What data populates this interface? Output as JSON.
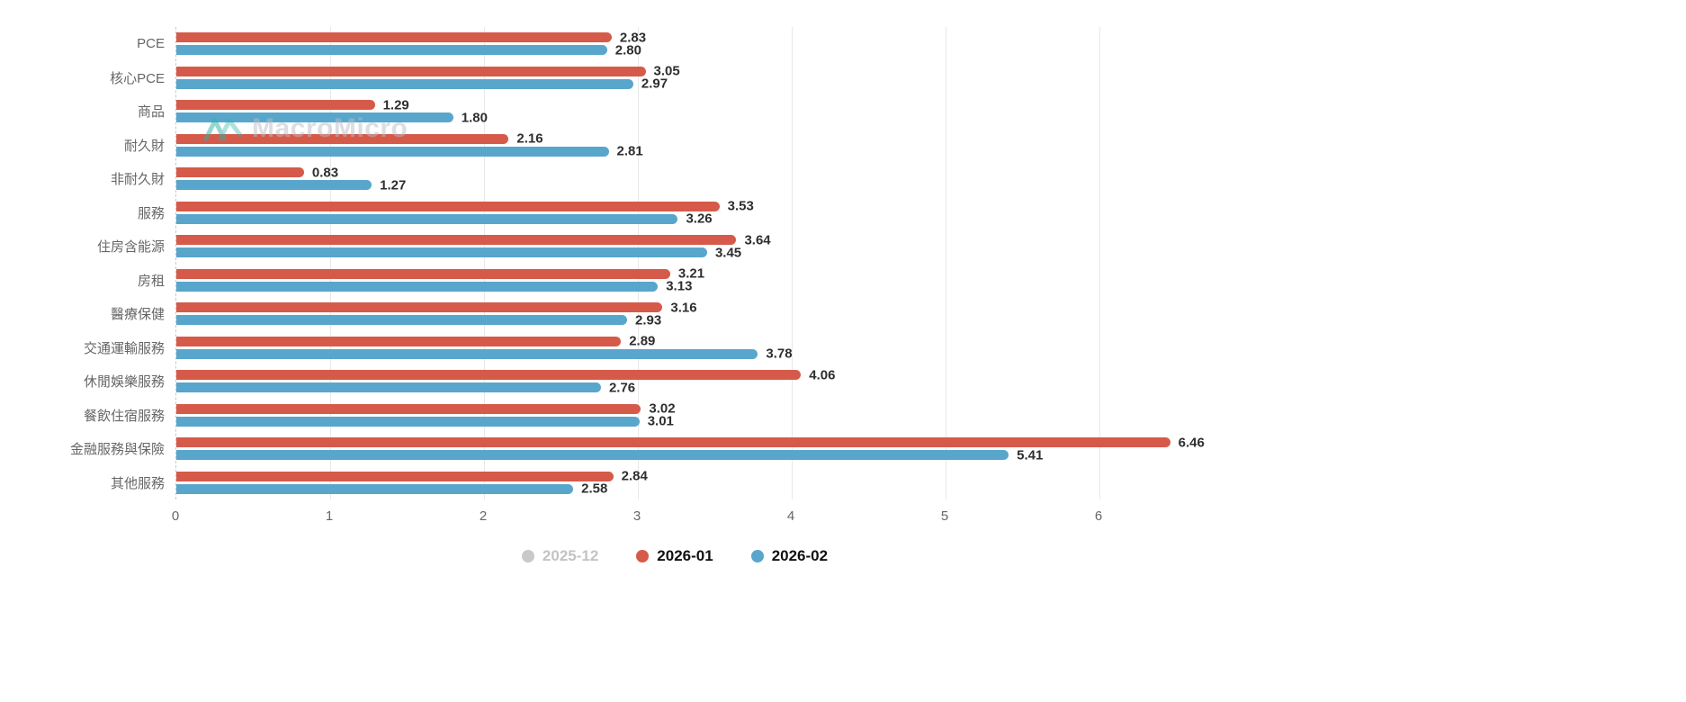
{
  "chart_data": {
    "type": "bar",
    "orientation": "horizontal",
    "title": "",
    "xlabel": "",
    "ylabel": "",
    "xlim": [
      0,
      6.8
    ],
    "xticks": [
      0,
      1,
      2,
      3,
      4,
      5,
      6
    ],
    "grid": true,
    "legend_position": "bottom",
    "categories": [
      "PCE",
      "核心PCE",
      "商品",
      "耐久財",
      "非耐久財",
      "服務",
      "住房含能源",
      "房租",
      "醫療保健",
      "交通運輸服務",
      "休閒娛樂服務",
      "餐飲住宿服務",
      "金融服務與保險",
      "其他服務"
    ],
    "series": [
      {
        "name": "2025-12",
        "color": "#c9c9c9",
        "visible": false,
        "values": []
      },
      {
        "name": "2026-01",
        "color": "#d65a4a",
        "visible": true,
        "values": [
          2.83,
          3.05,
          1.29,
          2.16,
          0.83,
          3.53,
          3.64,
          3.21,
          3.16,
          2.89,
          4.06,
          3.02,
          6.46,
          2.84
        ]
      },
      {
        "name": "2026-02",
        "color": "#58a6cc",
        "visible": true,
        "values": [
          2.8,
          2.97,
          1.8,
          2.81,
          1.27,
          3.26,
          3.45,
          3.13,
          2.93,
          3.78,
          2.76,
          3.01,
          5.41,
          2.58
        ]
      }
    ]
  },
  "legend": {
    "items": [
      {
        "label": "2025-12",
        "color": "#c9c9c9",
        "disabled": true
      },
      {
        "label": "2026-01",
        "color": "#d65a4a",
        "disabled": false
      },
      {
        "label": "2026-02",
        "color": "#58a6cc",
        "disabled": false
      }
    ]
  },
  "watermark": {
    "text": "MacroMicro",
    "icon": "macromicro-logo-icon",
    "icon_color": "#2eb3a4"
  }
}
